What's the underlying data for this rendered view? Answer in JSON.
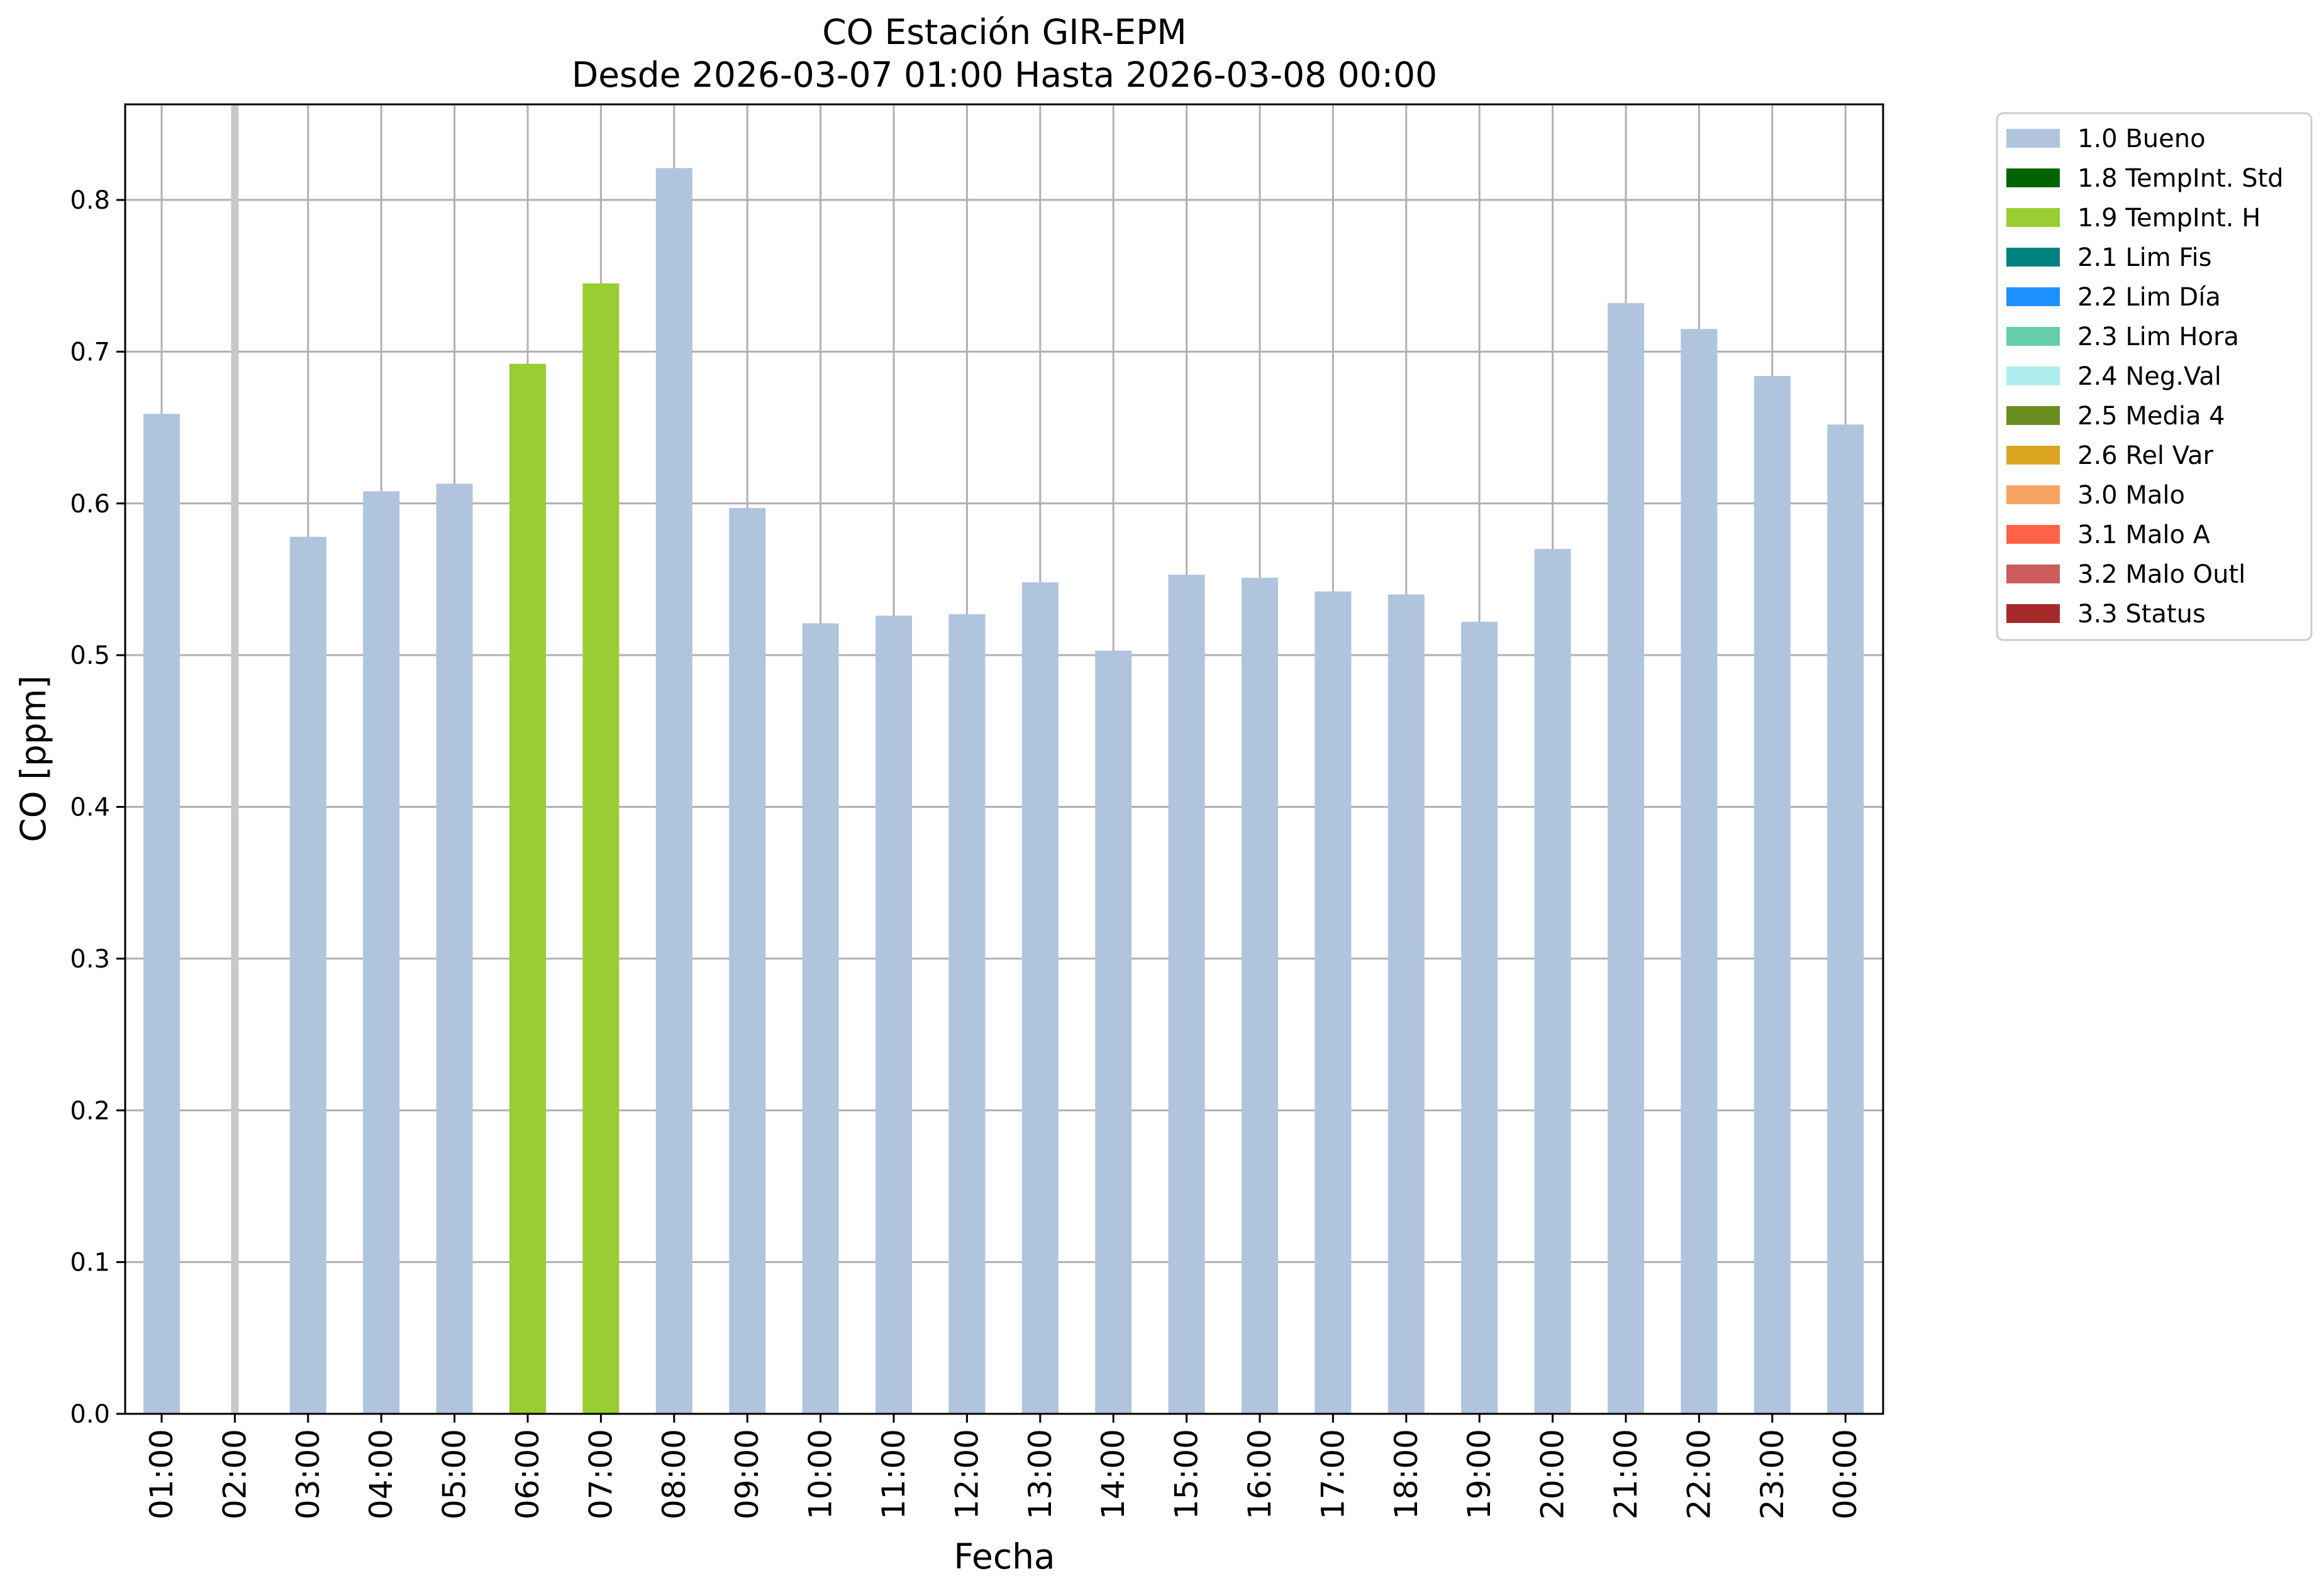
{
  "chart_data": {
    "type": "bar",
    "title": "CO Estación GIR-EPM",
    "subtitle": "Desde 2026-03-07 01:00 Hasta 2026-03-08 00:00",
    "xlabel": "Fecha",
    "ylabel": "CO [ppm]",
    "ylim": [
      0,
      0.863
    ],
    "yticks": [
      0.0,
      0.1,
      0.2,
      0.3,
      0.4,
      0.5,
      0.6,
      0.7,
      0.8
    ],
    "grid": true,
    "legend_position": "outside-right",
    "categories": [
      "01:00",
      "02:00",
      "03:00",
      "04:00",
      "05:00",
      "06:00",
      "07:00",
      "08:00",
      "09:00",
      "10:00",
      "11:00",
      "12:00",
      "13:00",
      "14:00",
      "15:00",
      "16:00",
      "17:00",
      "18:00",
      "19:00",
      "20:00",
      "21:00",
      "22:00",
      "23:00",
      "00:00"
    ],
    "values": [
      0.659,
      null,
      0.578,
      0.608,
      0.613,
      0.692,
      0.745,
      0.821,
      0.597,
      0.521,
      0.526,
      0.527,
      0.548,
      0.503,
      0.553,
      0.551,
      0.542,
      0.54,
      0.522,
      0.57,
      0.732,
      0.715,
      0.684,
      0.652
    ],
    "flags": [
      "1.0 Bueno",
      null,
      "1.0 Bueno",
      "1.0 Bueno",
      "1.0 Bueno",
      "1.9 TempInt. H",
      "1.9 TempInt. H",
      "1.0 Bueno",
      "1.0 Bueno",
      "1.0 Bueno",
      "1.0 Bueno",
      "1.0 Bueno",
      "1.0 Bueno",
      "1.0 Bueno",
      "1.0 Bueno",
      "1.0 Bueno",
      "1.0 Bueno",
      "1.0 Bueno",
      "1.0 Bueno",
      "1.0 Bueno",
      "1.0 Bueno",
      "1.0 Bueno",
      "1.0 Bueno",
      "1.0 Bueno"
    ],
    "missing_marker_color": "#c8c8c8",
    "legend": [
      {
        "label": "1.0 Bueno",
        "color": "#b0c4de"
      },
      {
        "label": "1.8 TempInt. Std",
        "color": "#006400"
      },
      {
        "label": "1.9 TempInt. H",
        "color": "#9acd32"
      },
      {
        "label": "2.1 Lim Fis",
        "color": "#008080"
      },
      {
        "label": "2.2 Lim Día",
        "color": "#1e90ff"
      },
      {
        "label": "2.3 Lim Hora",
        "color": "#66cdaa"
      },
      {
        "label": "2.4 Neg.Val",
        "color": "#afeeee"
      },
      {
        "label": "2.5 Media 4",
        "color": "#6b8e23"
      },
      {
        "label": "2.6 Rel Var",
        "color": "#daa520"
      },
      {
        "label": "3.0 Malo",
        "color": "#f4a460"
      },
      {
        "label": "3.1 Malo A",
        "color": "#ff6347"
      },
      {
        "label": "3.2 Malo Outl",
        "color": "#cd5c5c"
      },
      {
        "label": "3.3 Status",
        "color": "#a52a2a"
      }
    ]
  }
}
